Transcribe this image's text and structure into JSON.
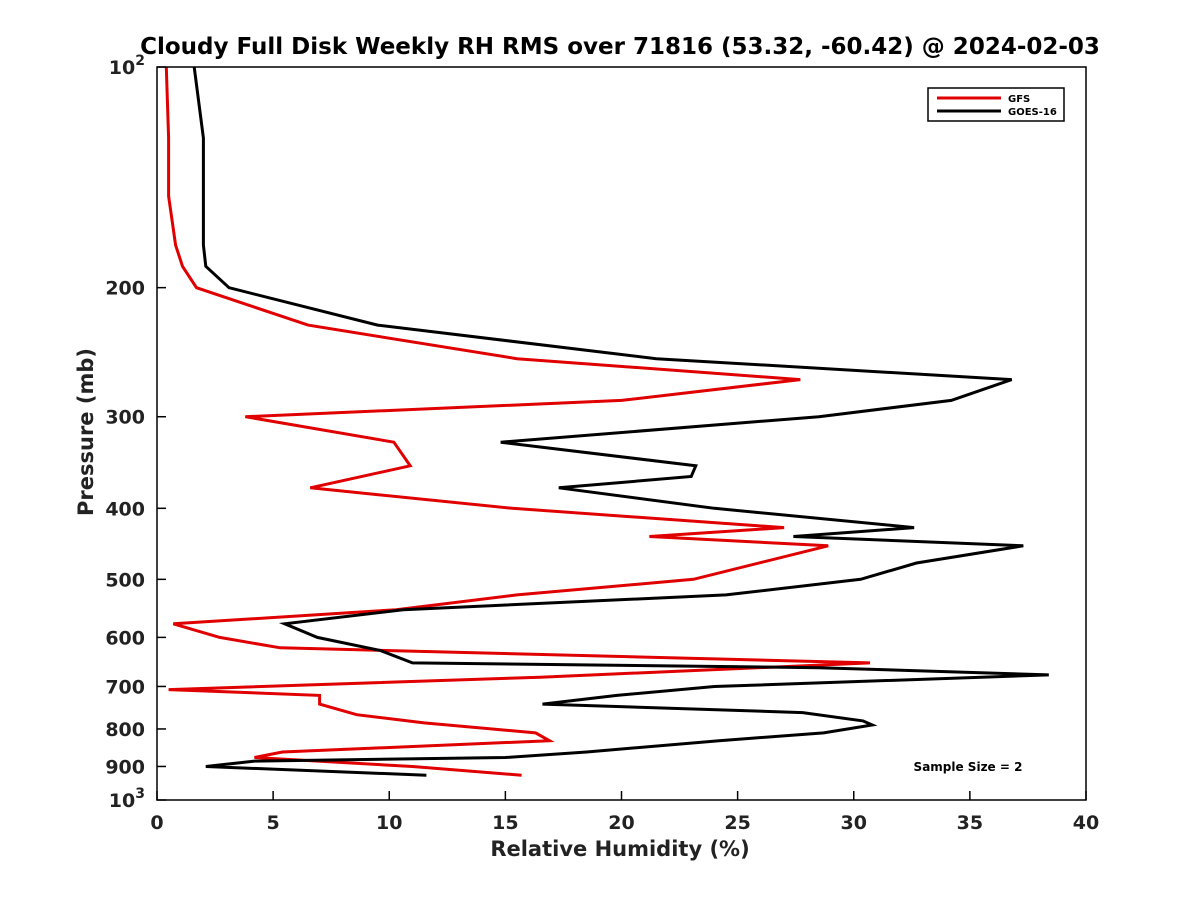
{
  "chart_data": {
    "type": "line",
    "title": "Cloudy Full Disk Weekly RH RMS over 71816 (53.32, -60.42) @ 2024-02-03",
    "xlabel": "Relative Humidity (%)",
    "ylabel": "Pressure (mb)",
    "xlim": [
      0,
      40
    ],
    "ylim": [
      100,
      1000
    ],
    "y_scale": "log",
    "y_reversed": true,
    "x_ticks": [
      0,
      5,
      10,
      15,
      20,
      25,
      30,
      35,
      40
    ],
    "y_ticks": [
      {
        "value": 100,
        "base": "10",
        "exp": "2"
      },
      {
        "value": 200,
        "label": "200"
      },
      {
        "value": 300,
        "label": "300"
      },
      {
        "value": 400,
        "label": "400"
      },
      {
        "value": 500,
        "label": "500"
      },
      {
        "value": 600,
        "label": "600"
      },
      {
        "value": 700,
        "label": "700"
      },
      {
        "value": 800,
        "label": "800"
      },
      {
        "value": 900,
        "label": "900"
      },
      {
        "value": 1000,
        "base": "10",
        "exp": "3"
      }
    ],
    "grid": false,
    "legend": "top-right",
    "annotation": "Sample Size = 2",
    "series": [
      {
        "name": "GFS",
        "color": "#e00000",
        "points": [
          [
            0.4,
            100
          ],
          [
            0.5,
            125
          ],
          [
            0.5,
            150
          ],
          [
            0.8,
            175
          ],
          [
            1.1,
            187
          ],
          [
            1.7,
            200
          ],
          [
            6.5,
            225
          ],
          [
            15.5,
            250
          ],
          [
            27.7,
            267
          ],
          [
            20.0,
            285
          ],
          [
            3.8,
            300
          ],
          [
            10.2,
            325
          ],
          [
            10.9,
            350
          ],
          [
            6.6,
            375
          ],
          [
            15.3,
            400
          ],
          [
            27.0,
            425
          ],
          [
            21.2,
            437
          ],
          [
            28.9,
            450
          ],
          [
            23.1,
            500
          ],
          [
            15.5,
            525
          ],
          [
            10.3,
            550
          ],
          [
            0.7,
            575
          ],
          [
            2.7,
            600
          ],
          [
            5.3,
            620
          ],
          [
            30.7,
            650
          ],
          [
            16.5,
            680
          ],
          [
            0.5,
            707
          ],
          [
            7.0,
            720
          ],
          [
            7.0,
            740
          ],
          [
            8.6,
            765
          ],
          [
            11.5,
            785
          ],
          [
            16.3,
            810
          ],
          [
            16.9,
            830
          ],
          [
            5.4,
            860
          ],
          [
            4.2,
            875
          ],
          [
            11.0,
            900
          ],
          [
            15.7,
            925
          ]
        ]
      },
      {
        "name": "GOES-16",
        "color": "#000000",
        "points": [
          [
            1.6,
            100
          ],
          [
            2.0,
            125
          ],
          [
            2.0,
            150
          ],
          [
            2.0,
            175
          ],
          [
            2.1,
            187
          ],
          [
            3.1,
            200
          ],
          [
            9.5,
            225
          ],
          [
            21.5,
            250
          ],
          [
            36.8,
            267
          ],
          [
            34.2,
            285
          ],
          [
            28.5,
            300
          ],
          [
            14.8,
            325
          ],
          [
            23.2,
            350
          ],
          [
            23.0,
            362
          ],
          [
            17.3,
            375
          ],
          [
            24.0,
            400
          ],
          [
            32.6,
            425
          ],
          [
            27.4,
            437
          ],
          [
            37.3,
            450
          ],
          [
            32.7,
            475
          ],
          [
            30.3,
            500
          ],
          [
            24.5,
            525
          ],
          [
            10.6,
            550
          ],
          [
            5.5,
            575
          ],
          [
            6.9,
            600
          ],
          [
            9.6,
            625
          ],
          [
            11.0,
            650
          ],
          [
            28.5,
            660
          ],
          [
            38.4,
            675
          ],
          [
            24.0,
            700
          ],
          [
            19.8,
            720
          ],
          [
            16.6,
            740
          ],
          [
            27.8,
            760
          ],
          [
            30.4,
            780
          ],
          [
            30.8,
            790
          ],
          [
            28.7,
            810
          ],
          [
            24.2,
            830
          ],
          [
            18.5,
            860
          ],
          [
            15.0,
            875
          ],
          [
            4.2,
            885
          ],
          [
            2.1,
            900
          ],
          [
            11.6,
            925
          ]
        ]
      }
    ]
  }
}
